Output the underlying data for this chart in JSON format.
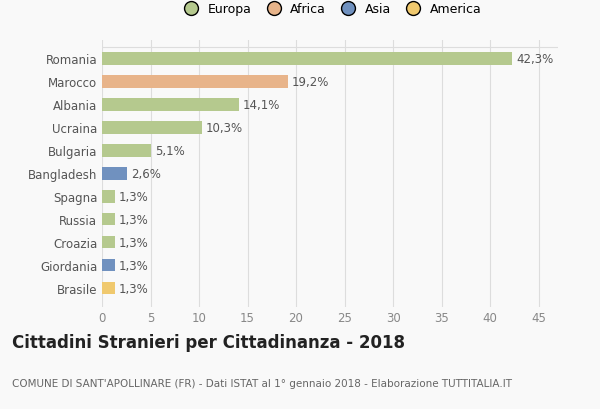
{
  "countries": [
    "Romania",
    "Marocco",
    "Albania",
    "Ucraina",
    "Bulgaria",
    "Bangladesh",
    "Spagna",
    "Russia",
    "Croazia",
    "Giordania",
    "Brasile"
  ],
  "values": [
    42.3,
    19.2,
    14.1,
    10.3,
    5.1,
    2.6,
    1.3,
    1.3,
    1.3,
    1.3,
    1.3
  ],
  "labels": [
    "42,3%",
    "19,2%",
    "14,1%",
    "10,3%",
    "5,1%",
    "2,6%",
    "1,3%",
    "1,3%",
    "1,3%",
    "1,3%",
    "1,3%"
  ],
  "colors": [
    "#b5c98e",
    "#e8b48a",
    "#b5c98e",
    "#b5c98e",
    "#b5c98e",
    "#7091bf",
    "#b5c98e",
    "#b5c98e",
    "#b5c98e",
    "#7091bf",
    "#f0c96e"
  ],
  "legend_labels": [
    "Europa",
    "Africa",
    "Asia",
    "America"
  ],
  "legend_colors": [
    "#b5c98e",
    "#e8b48a",
    "#7091bf",
    "#f0c96e"
  ],
  "title": "Cittadini Stranieri per Cittadinanza - 2018",
  "subtitle": "COMUNE DI SANT'APOLLINARE (FR) - Dati ISTAT al 1° gennaio 2018 - Elaborazione TUTTITALIA.IT",
  "xlim": [
    0,
    47
  ],
  "xticks": [
    0,
    5,
    10,
    15,
    20,
    25,
    30,
    35,
    40,
    45
  ],
  "bg_color": "#f9f9f9",
  "grid_color": "#dddddd",
  "bar_height": 0.55,
  "label_fontsize": 8.5,
  "title_fontsize": 12,
  "subtitle_fontsize": 7.5,
  "tick_fontsize": 8.5,
  "legend_fontsize": 9
}
